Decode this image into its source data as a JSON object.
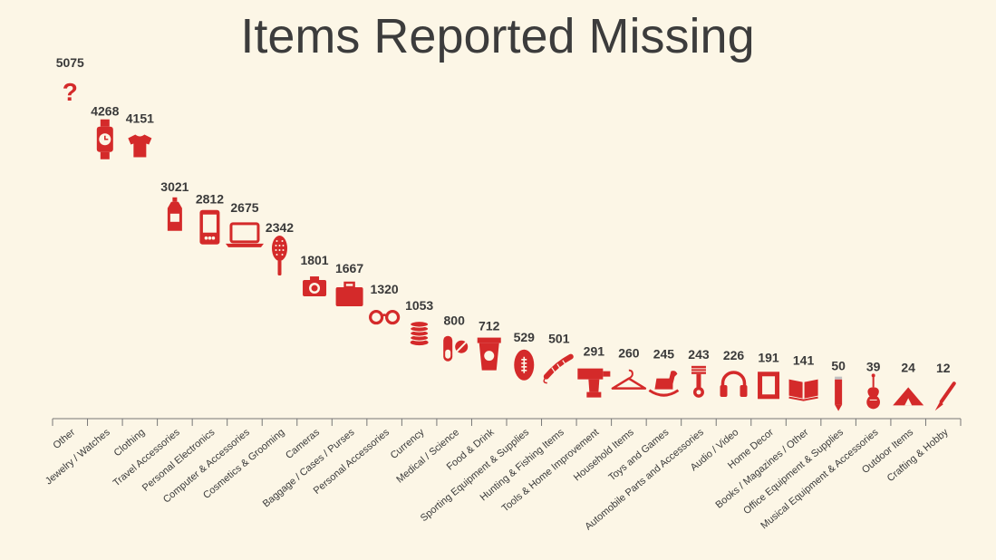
{
  "chart_data": {
    "type": "pictograph",
    "title": "Items Reported Missing",
    "accent_color": "#d42a2a",
    "categories": [
      {
        "label": "Other",
        "value": 5075,
        "icon": "question-mark-icon"
      },
      {
        "label": "Jewelry / Watches",
        "value": 4268,
        "icon": "watch-icon"
      },
      {
        "label": "Clothing",
        "value": 4151,
        "icon": "tshirt-icon"
      },
      {
        "label": "Travel Accessories",
        "value": 3021,
        "icon": "bottle-icon"
      },
      {
        "label": "Personal Electronics",
        "value": 2812,
        "icon": "phone-icon"
      },
      {
        "label": "Computer & Accessories",
        "value": 2675,
        "icon": "laptop-icon"
      },
      {
        "label": "Cosmetics & Grooming",
        "value": 2342,
        "icon": "hairbrush-icon"
      },
      {
        "label": "Cameras",
        "value": 1801,
        "icon": "camera-icon"
      },
      {
        "label": "Baggage / Cases / Purses",
        "value": 1667,
        "icon": "suitcase-icon"
      },
      {
        "label": "Personal Accessories",
        "value": 1320,
        "icon": "glasses-icon"
      },
      {
        "label": "Currency",
        "value": 1053,
        "icon": "coins-icon"
      },
      {
        "label": "Medical / Science",
        "value": 800,
        "icon": "pills-icon"
      },
      {
        "label": "Food & Drink",
        "value": 712,
        "icon": "cup-icon"
      },
      {
        "label": "Sporting Equipment & Supplies",
        "value": 529,
        "icon": "football-icon"
      },
      {
        "label": "Hunting & Fishing Items",
        "value": 501,
        "icon": "fishing-lure-icon"
      },
      {
        "label": "Tools & Home Improvement",
        "value": 291,
        "icon": "drill-icon"
      },
      {
        "label": "Household Items",
        "value": 260,
        "icon": "hanger-icon"
      },
      {
        "label": "Toys and Games",
        "value": 245,
        "icon": "rocking-horse-icon"
      },
      {
        "label": "Automobile Parts and Accessories",
        "value": 243,
        "icon": "piston-icon"
      },
      {
        "label": "Audio / Video",
        "value": 226,
        "icon": "headphones-icon"
      },
      {
        "label": "Home Decor",
        "value": 191,
        "icon": "picture-frame-icon"
      },
      {
        "label": "Books / Magazines / Other",
        "value": 141,
        "icon": "book-icon"
      },
      {
        "label": "Office Equipment & Supplies",
        "value": 50,
        "icon": "pencil-icon"
      },
      {
        "label": "Musical Equipment & Accessories",
        "value": 39,
        "icon": "violin-icon"
      },
      {
        "label": "Outdoor Items",
        "value": 24,
        "icon": "tent-icon"
      },
      {
        "label": "Crafting & Hobby",
        "value": 12,
        "icon": "paintbrush-icon"
      }
    ]
  }
}
